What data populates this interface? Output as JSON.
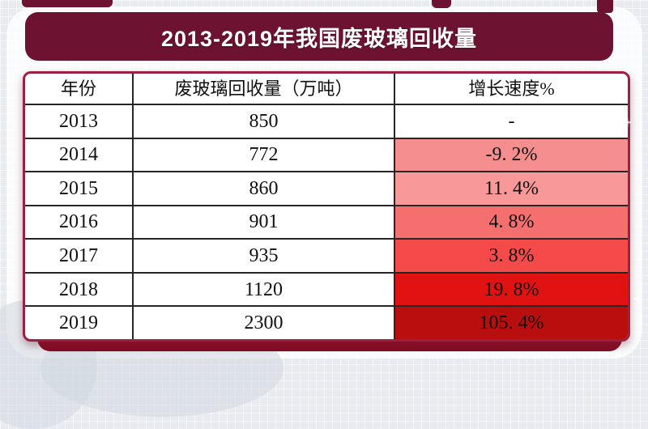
{
  "title": "2013-2019年我国废玻璃回收量",
  "table": {
    "columns": {
      "year": "年份",
      "volume": "废玻璃回收量（万吨）",
      "growth": "增长速度%"
    },
    "rows": [
      {
        "year": "2013",
        "volume": "850",
        "growth": "-",
        "growth_bg": "#FFFFFF"
      },
      {
        "year": "2014",
        "volume": "772",
        "growth": "-9. 2%",
        "growth_bg": "#F58F8F"
      },
      {
        "year": "2015",
        "volume": "860",
        "growth": "11. 4%",
        "growth_bg": "#F89898"
      },
      {
        "year": "2016",
        "volume": "901",
        "growth": "4. 8%",
        "growth_bg": "#F56F6F"
      },
      {
        "year": "2017",
        "volume": "935",
        "growth": "3. 8%",
        "growth_bg": "#F54A4A"
      },
      {
        "year": "2018",
        "volume": "1120",
        "growth": "19. 8%",
        "growth_bg": "#E11212"
      },
      {
        "year": "2019",
        "volume": "2300",
        "growth": "105. 4%",
        "growth_bg": "#B80E0E"
      }
    ]
  },
  "chart_data": {
    "type": "table",
    "title": "2013-2019年我国废玻璃回收量",
    "columns": [
      "年份",
      "废玻璃回收量（万吨）",
      "增长速度%"
    ],
    "years": [
      2013,
      2014,
      2015,
      2016,
      2017,
      2018,
      2019
    ],
    "volumes_wan_tons": [
      850,
      772,
      860,
      901,
      935,
      1120,
      2300
    ],
    "growth_pct": [
      null,
      -9.2,
      11.4,
      4.8,
      3.8,
      19.8,
      105.4
    ],
    "growth_cell_colors": [
      "#FFFFFF",
      "#F58F8F",
      "#F89898",
      "#F56F6F",
      "#F54A4A",
      "#E11212",
      "#B80E0E"
    ],
    "legend_position": "none",
    "grid": true
  },
  "colors": {
    "banner": "#6E1232",
    "table_border": "#9C2044",
    "grid_line": "#262626",
    "base_bar_top": "#C5304A",
    "base_bar_bottom": "#7E0E24",
    "background": "#E8ECF1"
  },
  "decor": {
    "sparkle": "+"
  }
}
